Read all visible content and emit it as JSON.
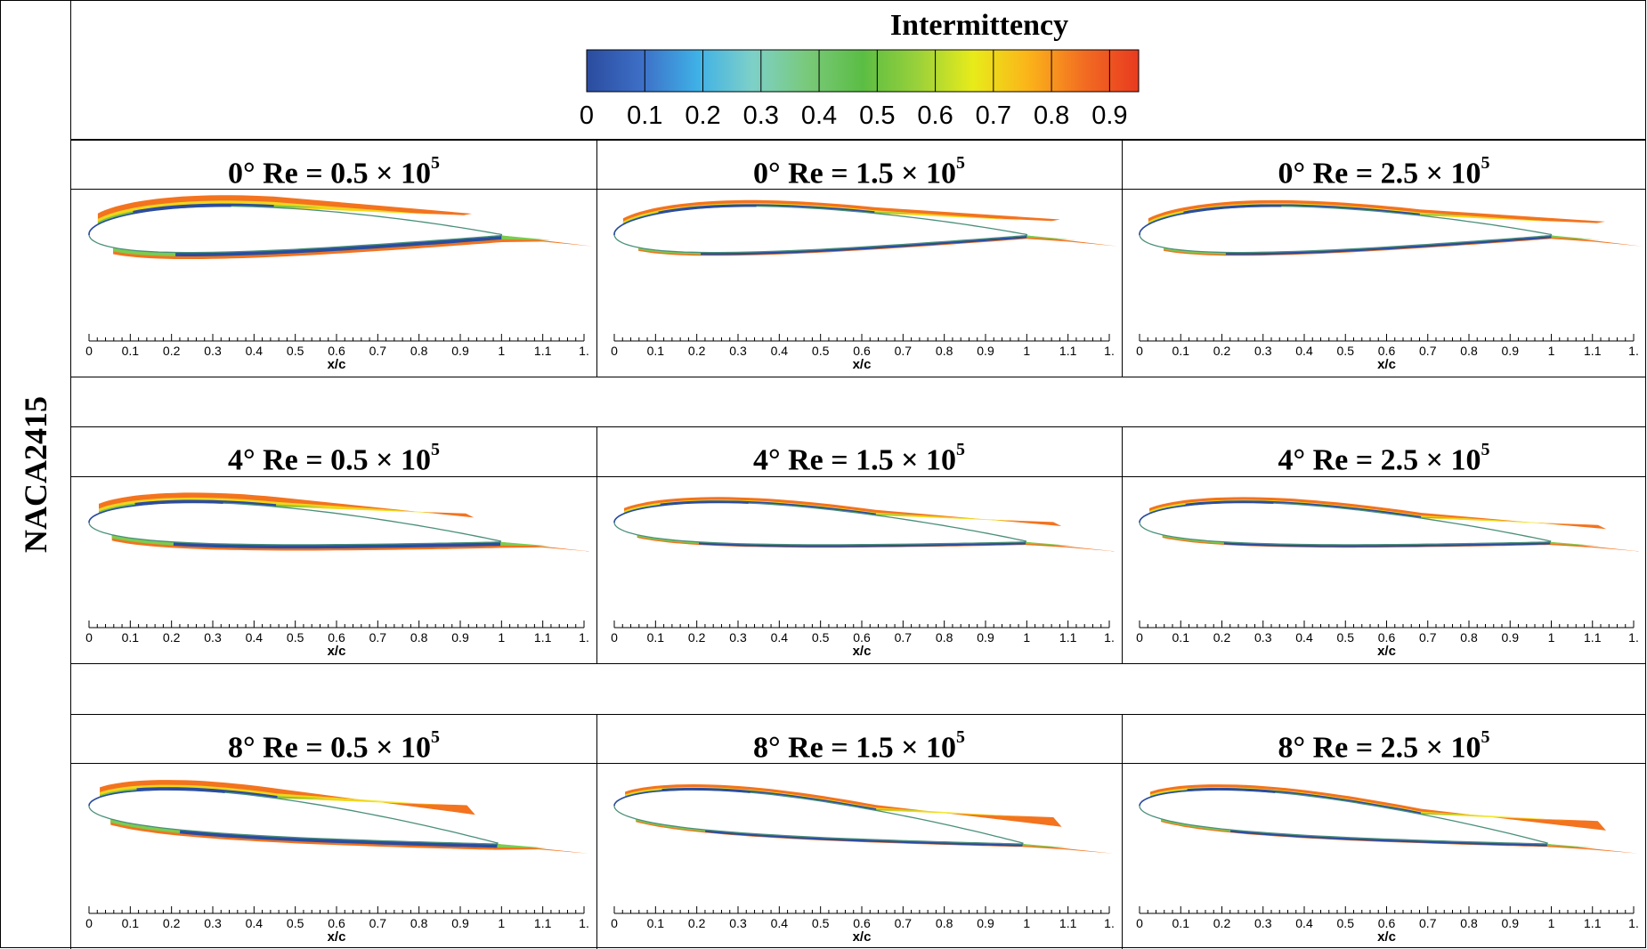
{
  "side_label": "NACA2415",
  "colorbar": {
    "title": "Intermittency",
    "ticks": [
      "0",
      "0.1",
      "0.2",
      "0.3",
      "0.4",
      "0.5",
      "0.6",
      "0.7",
      "0.8",
      "0.9"
    ],
    "colors": [
      "#2b4c9e",
      "#3d6fc7",
      "#3fb0e6",
      "#7dd0c8",
      "#79c97a",
      "#5bbd44",
      "#9ad13a",
      "#e8eb1a",
      "#fbb41a",
      "#f26d22",
      "#e83a1f"
    ]
  },
  "panels": [
    {
      "angle": "0°",
      "re": "Re = 0.5 × 10",
      "exp": "5"
    },
    {
      "angle": "0°",
      "re": "Re = 1.5 × 10",
      "exp": "5"
    },
    {
      "angle": "0°",
      "re": "Re = 2.5 × 10",
      "exp": "5"
    },
    {
      "angle": "4°",
      "re": "Re = 0.5 × 10",
      "exp": "5"
    },
    {
      "angle": "4°",
      "re": "Re = 1.5 × 10",
      "exp": "5"
    },
    {
      "angle": "4°",
      "re": "Re = 2.5 × 10",
      "exp": "5"
    },
    {
      "angle": "8°",
      "re": "Re = 0.5 × 10",
      "exp": "5"
    },
    {
      "angle": "8°",
      "re": "Re = 1.5 × 10",
      "exp": "5"
    },
    {
      "angle": "8°",
      "re": "Re = 2.5 × 10",
      "exp": "5"
    }
  ],
  "axis": {
    "xlabel": "x/c",
    "ticks": [
      "0",
      "0.1",
      "0.2",
      "0.3",
      "0.4",
      "0.5",
      "0.6",
      "0.7",
      "0.8",
      "0.9",
      "1",
      "1.1",
      "1."
    ]
  }
}
